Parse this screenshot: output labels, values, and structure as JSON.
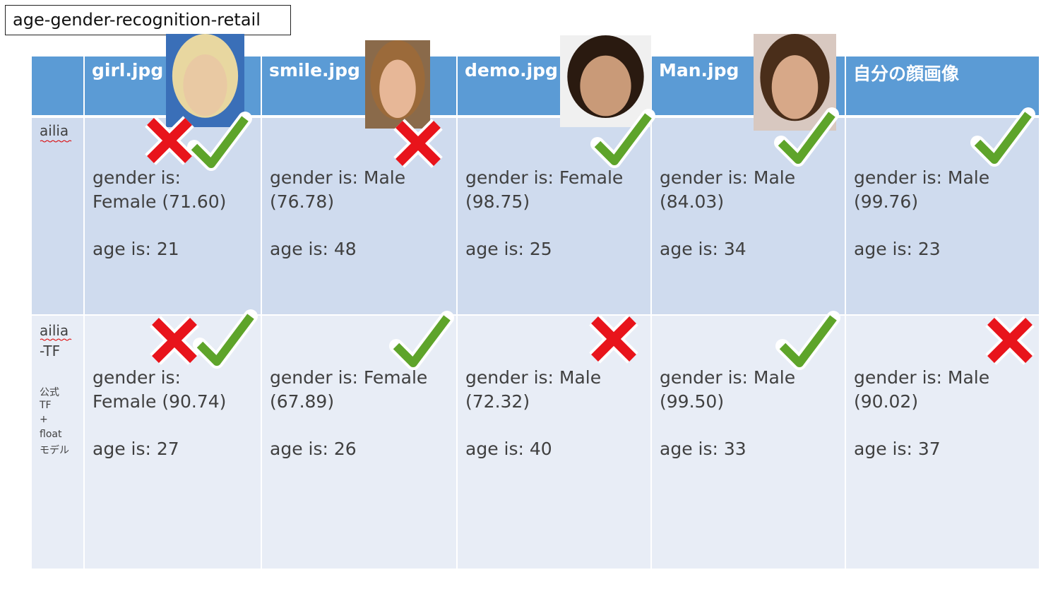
{
  "title": "age-gender-recognition-retail",
  "table": {
    "header": [
      "girl.jpg",
      "smile.jpg",
      "demo.jpg",
      "Man.jpg",
      "自分の顔画像"
    ],
    "rows": [
      {
        "label": [
          "ailia"
        ],
        "note": [],
        "cells": [
          {
            "gender": [
              "gender is:",
              "Female (71.60)"
            ],
            "age": "age is: 21"
          },
          {
            "gender": [
              "gender is: Male",
              "(76.78)"
            ],
            "age": "age is: 48"
          },
          {
            "gender": [
              "gender is: Female",
              "(98.75)"
            ],
            "age": "age is: 25"
          },
          {
            "gender": [
              "gender is: Male",
              "(84.03)"
            ],
            "age": "age is: 34"
          },
          {
            "gender": [
              "gender is: Male",
              "(99.76)"
            ],
            "age": "age is: 23"
          }
        ]
      },
      {
        "label": [
          "ailia",
          "-TF"
        ],
        "note": [
          "公式",
          "TF",
          "+",
          "float",
          "モデル"
        ],
        "cells": [
          {
            "gender": [
              "gender is:",
              "Female (90.74)"
            ],
            "age": "age is: 27"
          },
          {
            "gender": [
              "gender is: Female",
              "(67.89)"
            ],
            "age": "age is: 26"
          },
          {
            "gender": [
              "gender is: Male",
              "(72.32)"
            ],
            "age": "age is: 40"
          },
          {
            "gender": [
              "gender is: Male",
              "(99.50)"
            ],
            "age": "age is: 33"
          },
          {
            "gender": [
              "gender is: Male",
              "(90.02)"
            ],
            "age": "age is: 37"
          }
        ]
      }
    ]
  }
}
